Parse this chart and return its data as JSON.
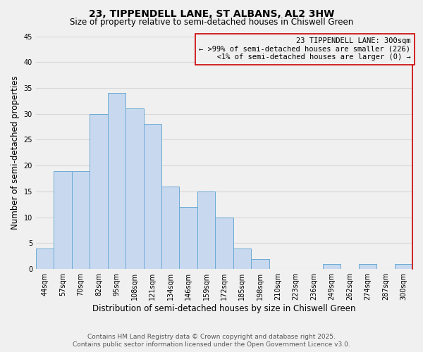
{
  "title": "23, TIPPENDELL LANE, ST ALBANS, AL2 3HW",
  "subtitle": "Size of property relative to semi-detached houses in Chiswell Green",
  "xlabel": "Distribution of semi-detached houses by size in Chiswell Green",
  "ylabel": "Number of semi-detached properties",
  "bin_labels": [
    "44sqm",
    "57sqm",
    "70sqm",
    "82sqm",
    "95sqm",
    "108sqm",
    "121sqm",
    "134sqm",
    "146sqm",
    "159sqm",
    "172sqm",
    "185sqm",
    "198sqm",
    "210sqm",
    "223sqm",
    "236sqm",
    "249sqm",
    "262sqm",
    "274sqm",
    "287sqm",
    "300sqm"
  ],
  "bar_heights": [
    4,
    19,
    19,
    30,
    34,
    31,
    28,
    16,
    12,
    15,
    10,
    4,
    2,
    0,
    0,
    0,
    1,
    0,
    1,
    0,
    1
  ],
  "bar_color": "#c8d9ef",
  "bar_edge_color": "#6aaad4",
  "highlight_bar_index": 20,
  "annotation_box_edge_color": "#cc0000",
  "annotation_title": "23 TIPPENDELL LANE: 300sqm",
  "annotation_line1": "← >99% of semi-detached houses are smaller (226)",
  "annotation_line2": "   <1% of semi-detached houses are larger (0) →",
  "ylim": [
    0,
    45
  ],
  "yticks": [
    0,
    5,
    10,
    15,
    20,
    25,
    30,
    35,
    40,
    45
  ],
  "footer_line1": "Contains HM Land Registry data © Crown copyright and database right 2025.",
  "footer_line2": "Contains public sector information licensed under the Open Government Licence v3.0.",
  "bg_color": "#f0f0f0",
  "grid_color": "#d8d8d8",
  "title_fontsize": 10,
  "subtitle_fontsize": 8.5,
  "axis_label_fontsize": 8.5,
  "tick_fontsize": 7,
  "annotation_fontsize": 7.5,
  "footer_fontsize": 6.5
}
